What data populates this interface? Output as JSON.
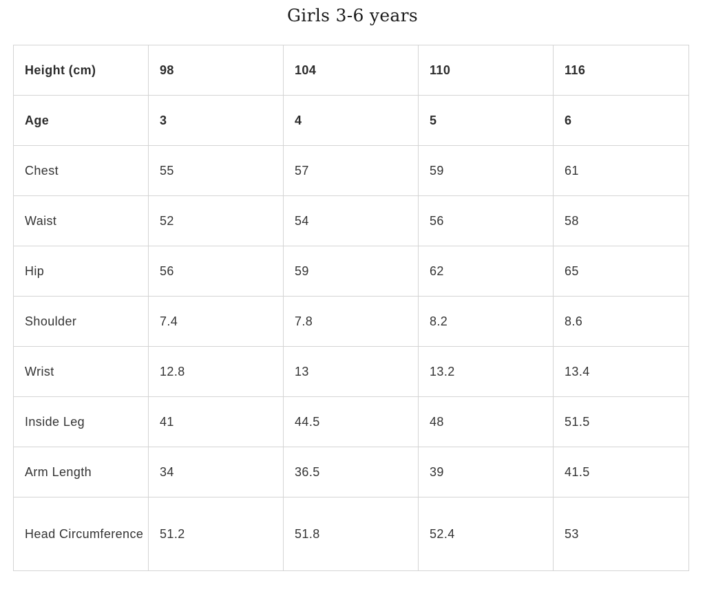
{
  "title": "Girls 3-6 years",
  "table": {
    "rows": [
      {
        "label": "Height (cm)",
        "values": [
          "98",
          "104",
          "110",
          "116"
        ],
        "bold": true
      },
      {
        "label": "Age",
        "values": [
          "3",
          "4",
          "5",
          "6"
        ],
        "bold": true
      },
      {
        "label": "Chest",
        "values": [
          "55",
          "57",
          "59",
          "61"
        ]
      },
      {
        "label": "Waist",
        "values": [
          "52",
          "54",
          "56",
          "58"
        ]
      },
      {
        "label": "Hip",
        "values": [
          "56",
          "59",
          "62",
          "65"
        ]
      },
      {
        "label": "Shoulder",
        "values": [
          "7.4",
          "7.8",
          "8.2",
          "8.6"
        ]
      },
      {
        "label": "Wrist",
        "values": [
          "12.8",
          "13",
          "13.2",
          "13.4"
        ]
      },
      {
        "label": "Inside Leg",
        "values": [
          "41",
          "44.5",
          "48",
          "51.5"
        ]
      },
      {
        "label": "Arm Length",
        "values": [
          "34",
          "36.5",
          "39",
          "41.5"
        ]
      },
      {
        "label": "Head Circumference",
        "values": [
          "51.2",
          "51.8",
          "52.4",
          "53"
        ]
      }
    ]
  }
}
